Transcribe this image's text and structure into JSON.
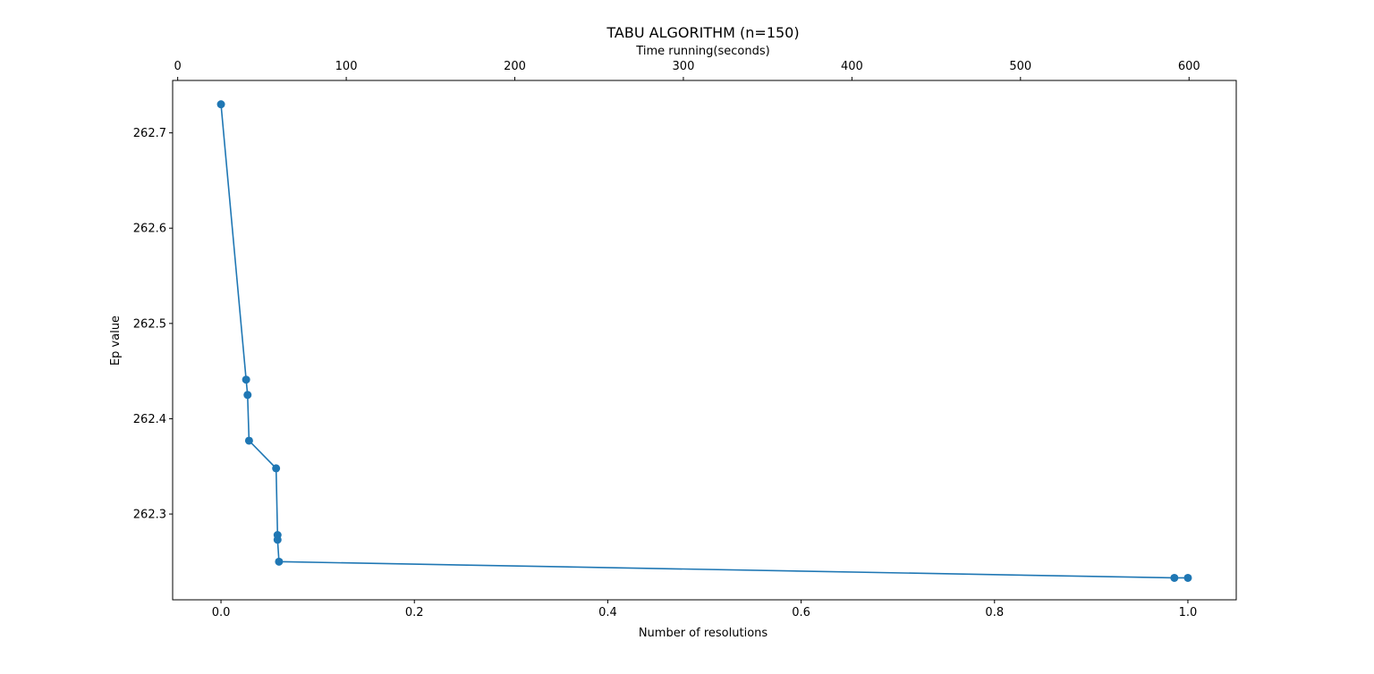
{
  "chart_data": {
    "type": "line",
    "title": "TABU ALGORITHM (n=150)",
    "xlabel": "Number of resolutions",
    "ylabel": "Ep value",
    "top_xlabel": "Time running(seconds)",
    "xlim": [
      -0.05,
      1.05
    ],
    "ylim": [
      262.21,
      262.755
    ],
    "top_xlim": [
      -3.0,
      628.0
    ],
    "x_ticks": [
      0.0,
      0.2,
      0.4,
      0.6,
      0.8,
      1.0
    ],
    "x_tick_labels": [
      "0.0",
      "0.2",
      "0.4",
      "0.6",
      "0.8",
      "1.0"
    ],
    "y_ticks": [
      262.3,
      262.4,
      262.5,
      262.6,
      262.7
    ],
    "y_tick_labels": [
      "262.3",
      "262.4",
      "262.5",
      "262.6",
      "262.7"
    ],
    "top_x_ticks": [
      0,
      100,
      200,
      300,
      400,
      500,
      600
    ],
    "top_x_tick_labels": [
      "0",
      "100",
      "200",
      "300",
      "400",
      "500",
      "600"
    ],
    "grid": false,
    "series": [
      {
        "color": "#1f77b4",
        "marker": "circle",
        "x": [
          0.0,
          0.026,
          0.0275,
          0.029,
          0.057,
          0.0585,
          0.0585,
          0.06,
          0.986,
          1.0
        ],
        "y": [
          262.73,
          262.441,
          262.425,
          262.377,
          262.348,
          262.278,
          262.273,
          262.25,
          262.233,
          262.233
        ]
      }
    ]
  }
}
